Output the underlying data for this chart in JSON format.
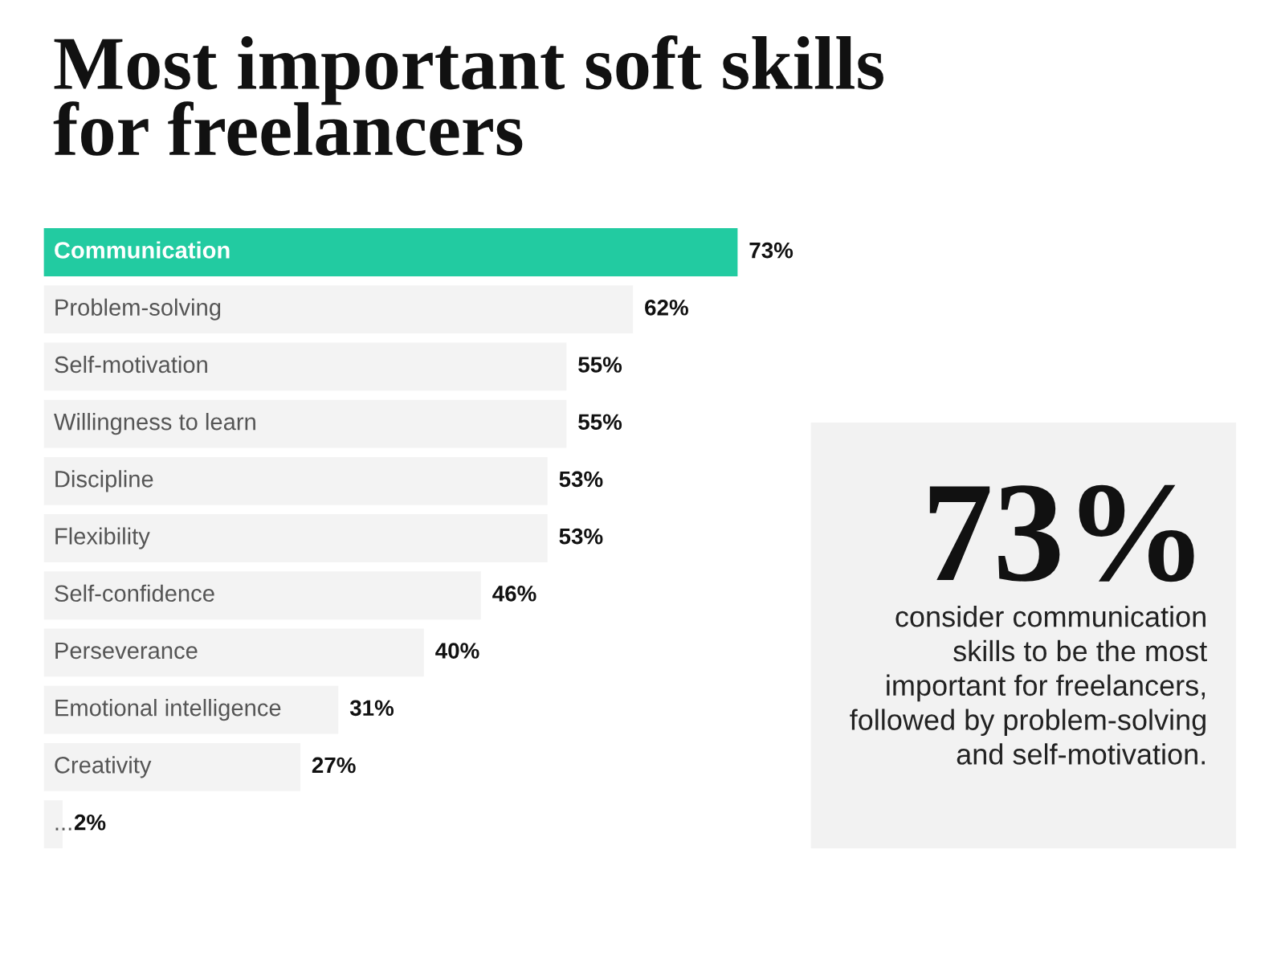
{
  "chart_data": [
    {
      "type": "bar",
      "orientation": "horizontal",
      "title": "Most important soft skills for freelancers",
      "categories": [
        "Communication",
        "Problem-solving",
        "Self-motivation",
        "Willingness to learn",
        "Discipline",
        "Flexibility",
        "Self-confidence",
        "Perseverance",
        "Emotional intelligence",
        "Creativity",
        "..."
      ],
      "values": [
        73,
        62,
        55,
        55,
        53,
        53,
        46,
        40,
        31,
        27,
        2
      ],
      "colors": [
        "#22cba1",
        "#f3f3f3",
        "#f3f3f3",
        "#f3f3f3",
        "#f3f3f3",
        "#f3f3f3",
        "#f3f3f3",
        "#f3f3f3",
        "#f3f3f3",
        "#f3f3f3",
        "#f3f3f3"
      ],
      "value_labels": [
        "73%",
        "62%",
        "55%",
        "55%",
        "53%",
        "53%",
        "46%",
        "40%",
        "31%",
        "27%",
        "2%"
      ],
      "tick_labels": "y"
    },
    {
      "type": "other",
      "title": "73%",
      "annotations": [
        "consider communication skills to be the most important for freelancers, followed by problem-solving and self-motivation."
      ]
    }
  ]
}
